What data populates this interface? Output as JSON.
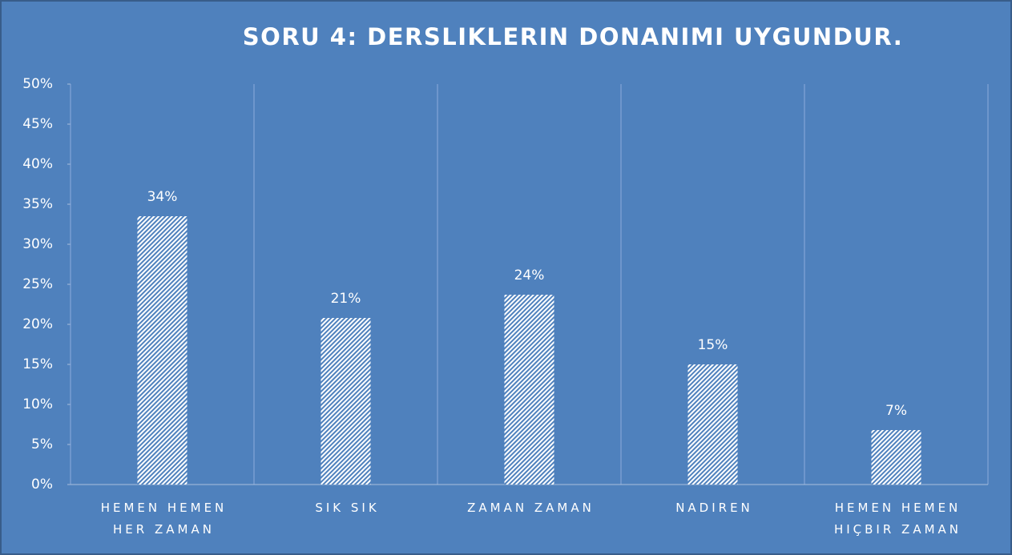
{
  "chart_data": {
    "type": "bar",
    "title": "SORU 4: DERSLIKLERIN DONANIMI UYGUNDUR.",
    "categories": [
      "HEMEN HEMEN HER ZAMAN",
      "SIK SIK",
      "ZAMAN ZAMAN",
      "NADIREN",
      "HEMEN HEMEN HIÇBIR ZAMAN"
    ],
    "values": [
      33.5,
      20.8,
      23.7,
      15,
      6.8
    ],
    "value_labels": [
      "34%",
      "21%",
      "24%",
      "15%",
      "7%"
    ],
    "color": "#4f81bd",
    "ylim": [
      0,
      50
    ],
    "yticks": [
      {
        "value": 0,
        "label": "0%"
      },
      {
        "value": 5,
        "label": "5%"
      },
      {
        "value": 10,
        "label": "10%"
      },
      {
        "value": 15,
        "label": "15%"
      },
      {
        "value": 20,
        "label": "20%"
      },
      {
        "value": 25,
        "label": "25%"
      },
      {
        "value": 30,
        "label": "30%"
      },
      {
        "value": 35,
        "label": "35%"
      },
      {
        "value": 40,
        "label": "40%"
      },
      {
        "value": 45,
        "label": "45%"
      },
      {
        "value": 50,
        "label": "50%"
      }
    ],
    "grid": true
  }
}
